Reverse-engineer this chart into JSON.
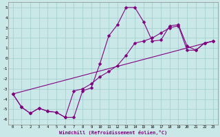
{
  "xlabel": "Windchill (Refroidissement éolien,°C)",
  "background_color": "#cbe8e8",
  "grid_color": "#9ecece",
  "line_color": "#800080",
  "xlim": [
    -0.5,
    23.5
  ],
  "ylim": [
    -6.5,
    5.5
  ],
  "yticks": [
    -6,
    -5,
    -4,
    -3,
    -2,
    -1,
    0,
    1,
    2,
    3,
    4,
    5
  ],
  "xticks": [
    0,
    1,
    2,
    3,
    4,
    5,
    6,
    7,
    8,
    9,
    10,
    11,
    12,
    13,
    14,
    15,
    16,
    17,
    18,
    19,
    20,
    21,
    22,
    23
  ],
  "series1_x": [
    0,
    1,
    2,
    3,
    4,
    5,
    6,
    7,
    8,
    9,
    10,
    11,
    12,
    13,
    14,
    15,
    16,
    17,
    18,
    19,
    20,
    21,
    22,
    23
  ],
  "series1_y": [
    -3.5,
    -4.8,
    -5.4,
    -4.9,
    -5.2,
    -5.3,
    -5.8,
    -5.8,
    -3.2,
    -2.9,
    -0.5,
    2.2,
    3.3,
    5.0,
    5.0,
    3.6,
    1.7,
    1.8,
    3.2,
    3.3,
    1.2,
    0.8,
    1.5,
    1.7
  ],
  "series2_x": [
    0,
    1,
    2,
    3,
    4,
    5,
    6,
    7,
    8,
    9,
    10,
    11,
    12,
    13,
    14,
    15,
    16,
    17,
    18,
    19,
    20,
    21,
    22,
    23
  ],
  "series2_y": [
    -3.5,
    -4.8,
    -5.4,
    -4.9,
    -5.2,
    -5.3,
    -5.8,
    -3.2,
    -3.0,
    -2.5,
    -1.8,
    -1.3,
    -0.7,
    0.3,
    1.5,
    1.7,
    2.0,
    2.5,
    3.0,
    3.2,
    0.8,
    0.8,
    1.5,
    1.7
  ],
  "series3_x": [
    0,
    23
  ],
  "series3_y": [
    -3.5,
    1.7
  ],
  "markersize": 2.5,
  "linewidth": 0.8
}
